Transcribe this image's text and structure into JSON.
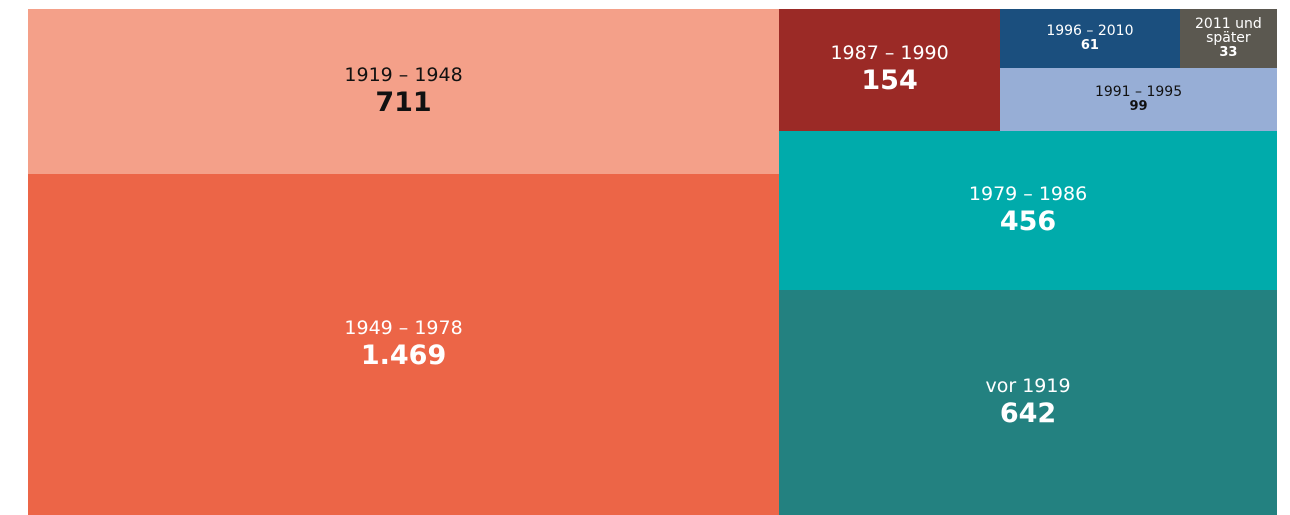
{
  "chart_data": {
    "type": "treemap",
    "categories": [
      "1919 – 1948",
      "1949 – 1978",
      "1987 – 1990",
      "1996 – 2010",
      "2011 und später",
      "1991 – 1995",
      "1979 – 1986",
      "vor 1919"
    ],
    "values": [
      711,
      1469,
      154,
      61,
      33,
      99,
      456,
      642
    ],
    "value_labels": [
      "711",
      "1.469",
      "154",
      "61",
      "33",
      "99",
      "456",
      "642"
    ],
    "colors": [
      "#f4a089",
      "#ec6547",
      "#9b2a26",
      "#1b4f7e",
      "#5b5850",
      "#97aed6",
      "#00abab",
      "#238180"
    ]
  }
}
